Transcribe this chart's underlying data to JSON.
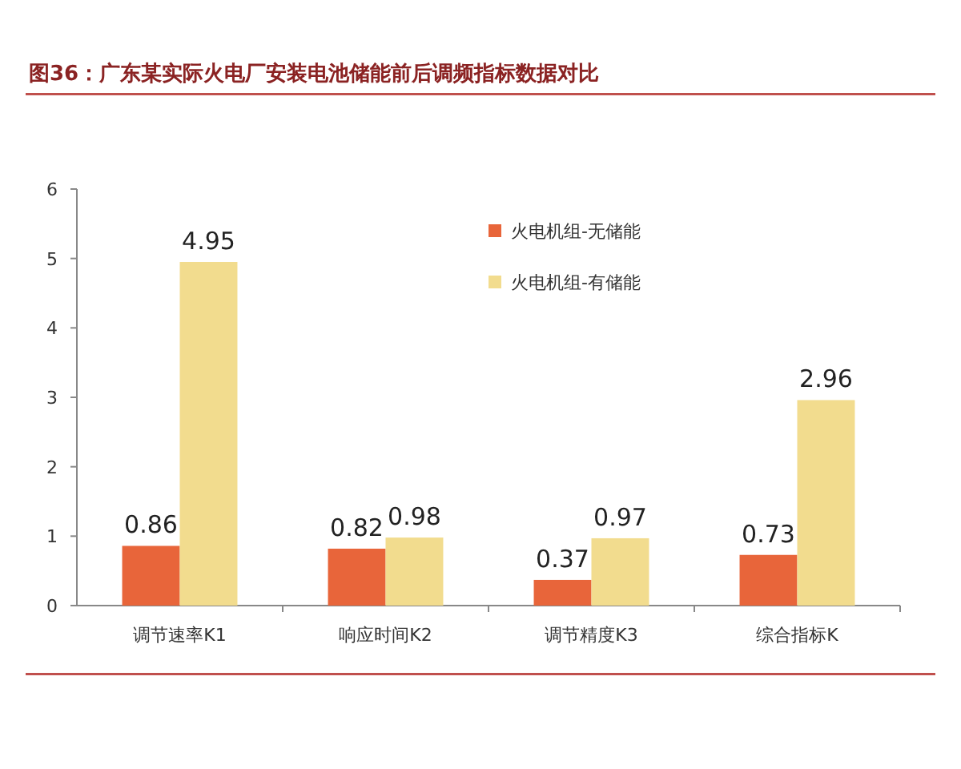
{
  "chart_data": {
    "type": "bar",
    "title": "图36：广东某实际火电厂安装电池储能前后调频指标数据对比",
    "categories": [
      "调节速率K1",
      "响应时间K2",
      "调节精度K3",
      "综合指标K"
    ],
    "series": [
      {
        "name": "火电机组-无储能",
        "color": "#e8653a",
        "values": [
          0.86,
          0.82,
          0.37,
          0.73
        ]
      },
      {
        "name": "火电机组-有储能",
        "color": "#f2dc8e",
        "values": [
          4.95,
          0.98,
          0.97,
          2.96
        ]
      }
    ],
    "ylim": [
      0,
      6
    ],
    "yticks": [
      0,
      1,
      2,
      3,
      4,
      5,
      6
    ],
    "grid": false,
    "legend": "top right",
    "data_labels": true
  }
}
